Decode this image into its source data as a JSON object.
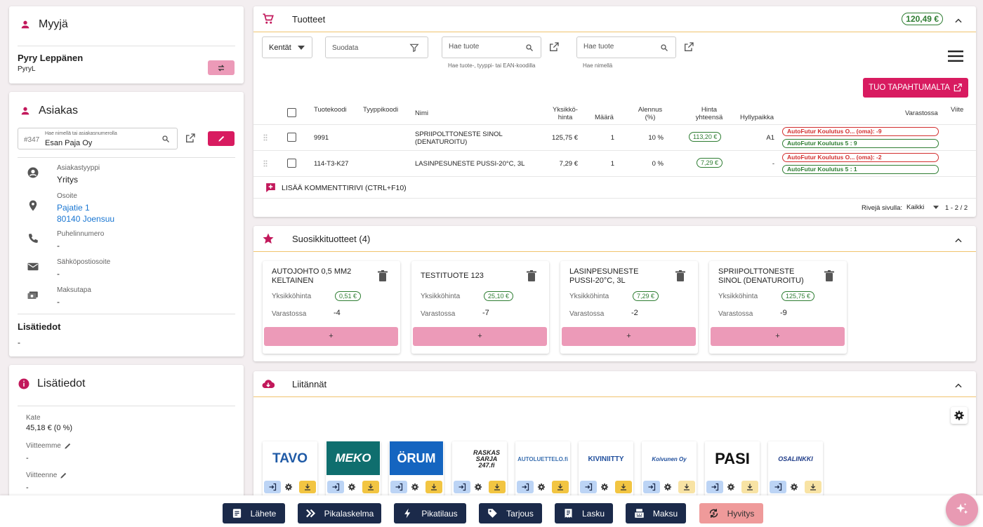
{
  "seller": {
    "title": "Myyjä",
    "name": "Pyry Leppänen",
    "username": "PyryL"
  },
  "customer": {
    "title": "Asiakas",
    "search_label": "Hae nimellä tai asiakasnumerolla",
    "number": "#347",
    "value": "Esan Paja Oy",
    "type_label": "Asiakastyyppi",
    "type_value": "Yritys",
    "address_label": "Osoite",
    "address_line1": "Pajatie 1",
    "address_line2": "80140 Joensuu",
    "phone_label": "Puhelinnumero",
    "phone_value": "-",
    "email_label": "Sähköpostiosoite",
    "email_value": "-",
    "payment_label": "Maksutapa",
    "payment_value": "-",
    "extra_title": "Lisätiedot",
    "extra_value": "-"
  },
  "info": {
    "title": "Lisätiedot",
    "margin_label": "Kate",
    "margin_value": "45,18 € (0 %)",
    "our_ref_label": "Viitteemme",
    "our_ref_value": "-",
    "your_ref_label": "Viitteenne",
    "your_ref_value": "-"
  },
  "products": {
    "title": "Tuotteet",
    "total": "120,49 €",
    "fields_label": "Kentät",
    "filter_placeholder": "Suodata",
    "search1_placeholder": "Hae tuote",
    "search1_hint": "Hae tuote-, tyyppi- tai EAN-koodilla",
    "search2_placeholder": "Hae tuote",
    "search2_hint": "Hae nimellä",
    "import_label": "TUO TAPAHTUMALTA",
    "columns": {
      "code": "Tuotekoodi",
      "type": "Tyyppikoodi",
      "name": "Nimi",
      "unit1": "Yksikkö-",
      "unit2": "hinta",
      "qty": "Määrä",
      "disc1": "Alennus",
      "disc2": "(%)",
      "total1": "Hinta",
      "total2": "yhteensä",
      "shelf": "Hyllypaikka",
      "stock": "Varastossa",
      "ref": "Viite"
    },
    "rows": [
      {
        "code": "9991",
        "name1": "SPRIIPOLTTONESTE SINOL",
        "name2": "(DENATUROITU)",
        "unit": "125,75 €",
        "qty": "1",
        "disc": "10 %",
        "total": "113,20 €",
        "shelf": "A1",
        "stock_own": "AutoFutur Koulutus O... (oma): -9",
        "stock_other": "AutoFutur Koulutus 5  : 9"
      },
      {
        "code": "114-T3-K27",
        "name1": "LASINPESUNESTE PUSSI-20°C, 3L",
        "name2": "",
        "unit": "7,29 €",
        "qty": "1",
        "disc": "0 %",
        "total": "7,29 €",
        "shelf": "-",
        "stock_own": "AutoFutur Koulutus O... (oma): -2",
        "stock_other": "AutoFutur Koulutus 5  : 1"
      }
    ],
    "add_comment": "LISÄÄ KOMMENTTIRIVI (CTRL+F10)",
    "rows_per_page_label": "Rivejä sivulla:",
    "rows_per_page_value": "Kaikki",
    "range": "1 - 2 / 2"
  },
  "favorites": {
    "title": "Suosikkituotteet (4)",
    "price_label": "Yksikköhinta",
    "stock_label": "Varastossa",
    "add_label": "+",
    "items": [
      {
        "name": "AUTOJOHTO 0,5 MM2 KELTAINEN",
        "price": "0,51 €",
        "stock": "-4"
      },
      {
        "name": "TESTITUOTE 123",
        "price": "25,10 €",
        "stock": "-7"
      },
      {
        "name": "LASINPESUNESTE PUSSI-20°C, 3L",
        "price": "7,29 €",
        "stock": "-2"
      },
      {
        "name": "SPRIIPOLTTONESTE SINOL (DENATUROITU)",
        "price": "125,75 €",
        "stock": "-9"
      }
    ]
  },
  "integrations": {
    "title": "Liitännät",
    "tiles": [
      {
        "logo": "TAVO",
        "color": "#1f5aa6"
      },
      {
        "logo": "MEKO",
        "color": "#ffffff",
        "bg": "#0f6e6e"
      },
      {
        "logo": "ÖRUM",
        "color": "#ffffff",
        "bg": "#1565c0"
      },
      {
        "logo": "RASKAS SARJA 247.fi",
        "color": "#222222"
      },
      {
        "logo": "AUTOLUETTELO.fi",
        "color": "#3a6fb0"
      },
      {
        "logo": "KIVINIITTY",
        "color": "#1f4e9c"
      },
      {
        "logo": "Koivunen Oy",
        "color": "#1f4e9c"
      },
      {
        "logo": "PASI",
        "color": "#111111"
      },
      {
        "logo": "OSALINKKI",
        "color": "#1f3c88"
      }
    ]
  },
  "bottom": {
    "buttons": [
      {
        "label": "Lähete",
        "icon": "document-icon"
      },
      {
        "label": "Pikalaskelma",
        "icon": "double-chevron-icon"
      },
      {
        "label": "Pikatilaus",
        "icon": "bolt-icon"
      },
      {
        "label": "Tarjous",
        "icon": "tag-icon"
      },
      {
        "label": "Lasku",
        "icon": "receipt-icon"
      },
      {
        "label": "Maksu",
        "icon": "cash-register-icon"
      },
      {
        "label": "Hyvitys",
        "icon": "refund-icon"
      }
    ]
  }
}
